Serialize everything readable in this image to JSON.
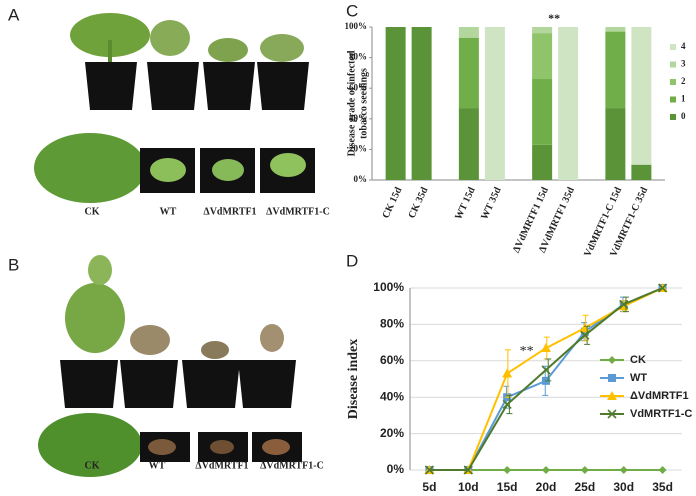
{
  "panel_labels": [
    "A",
    "B",
    "C",
    "D"
  ],
  "photo_captions": {
    "A": [
      "CK",
      "WT",
      "ΔVdMRTF1",
      "ΔVdMRTF1-C"
    ],
    "B": [
      "CK",
      "WT",
      "ΔVdMRTF1",
      "ΔVdMRTF1-C"
    ]
  },
  "chart_data": [
    {
      "type": "bar",
      "stacked": true,
      "ylabel": [
        "Disease grade of  infected",
        "tobacco seedings"
      ],
      "categories": [
        "CK 15d",
        "CK 35d",
        "WT 15d",
        "WT 35d",
        "ΔVdMRTF1 15d",
        "ΔVdMRTF1 35d",
        "VdMRTF1-C 15d",
        "VdMRTF1-C 35d"
      ],
      "series": [
        {
          "name": "0",
          "color": "#5b9438",
          "values": [
            100,
            100,
            47,
            0,
            23,
            0,
            47,
            10
          ]
        },
        {
          "name": "1",
          "color": "#6fae48",
          "values": [
            0,
            0,
            46,
            0,
            43,
            0,
            50,
            0
          ]
        },
        {
          "name": "2",
          "color": "#8fc46a",
          "values": [
            0,
            0,
            0,
            0,
            30,
            0,
            0,
            0
          ]
        },
        {
          "name": "3",
          "color": "#b3d69c",
          "values": [
            0,
            0,
            7,
            0,
            4,
            0,
            3,
            0
          ]
        },
        {
          "name": "4",
          "color": "#cfe4c2",
          "values": [
            0,
            0,
            0,
            100,
            0,
            100,
            0,
            90
          ]
        }
      ],
      "ylim": [
        0,
        100
      ],
      "yticks": [
        {
          "value": 0,
          "label": "0%"
        },
        {
          "value": 20,
          "label": "20%"
        },
        {
          "value": 40,
          "label": "40%"
        },
        {
          "value": 60,
          "label": "60%"
        },
        {
          "value": 80,
          "label": "80%"
        },
        {
          "value": 100,
          "label": "100%"
        }
      ],
      "grid": false,
      "annotation": "**"
    },
    {
      "type": "line",
      "ylabel": "Disease index",
      "categories": [
        "5d",
        "10d",
        "15d",
        "20d",
        "25d",
        "30d",
        "35d"
      ],
      "series": [
        {
          "name": "CK",
          "color": "#70ad47",
          "marker": "diamond",
          "values": [
            0,
            0,
            0,
            0,
            0,
            0,
            0
          ],
          "errors": [
            null,
            null,
            null,
            null,
            null,
            null,
            null
          ]
        },
        {
          "name": "WT",
          "color": "#5b9bd5",
          "marker": "square",
          "values": [
            0,
            0,
            40,
            49,
            76,
            91,
            100
          ],
          "errors": [
            null,
            null,
            6,
            8,
            5,
            4,
            null
          ]
        },
        {
          "name": "ΔVdMRTF1",
          "color": "#ffc000",
          "marker": "triangle",
          "values": [
            0,
            0,
            53,
            67,
            78,
            90,
            100
          ],
          "errors": [
            null,
            null,
            13,
            6,
            7,
            3,
            null
          ]
        },
        {
          "name": "VdMRTF1-C",
          "color": "#4f7a2e",
          "marker": "x",
          "values": [
            0,
            0,
            36,
            55,
            74,
            91,
            100
          ],
          "errors": [
            null,
            null,
            5,
            6,
            5,
            4,
            null
          ]
        }
      ],
      "ylim": [
        0,
        100
      ],
      "yticks": [
        {
          "value": 0,
          "label": "0%"
        },
        {
          "value": 20,
          "label": "20%"
        },
        {
          "value": 40,
          "label": "40%"
        },
        {
          "value": 60,
          "label": "60%"
        },
        {
          "value": 80,
          "label": "80%"
        },
        {
          "value": 100,
          "label": "100%"
        }
      ],
      "grid": true,
      "annotation": "**"
    }
  ]
}
